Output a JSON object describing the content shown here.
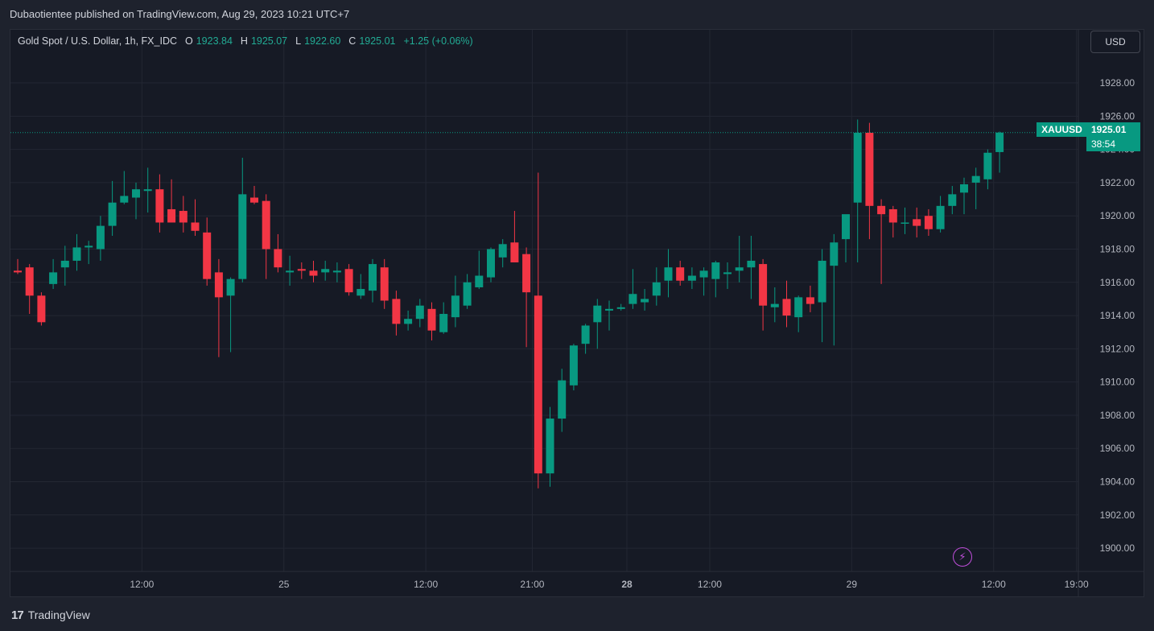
{
  "header": {
    "published_text": "Dubaotientee published on TradingView.com, Aug 29, 2023 10:21 UTC+7"
  },
  "legend": {
    "symbol": "Gold Spot / U.S. Dollar, 1h, FX_IDC",
    "o_label": "O",
    "o_value": "1923.84",
    "h_label": "H",
    "h_value": "1925.07",
    "l_label": "L",
    "l_value": "1922.60",
    "c_label": "C",
    "c_value": "1925.01",
    "change": "+1.25 (+0.06%)"
  },
  "currency_button": "USD",
  "last_price": {
    "ticker": "XAUUSD",
    "price": "1925.01",
    "countdown": "38:54"
  },
  "footer": {
    "logo": "17",
    "brand": "TradingView"
  },
  "colors": {
    "up": "#089981",
    "down": "#f23645",
    "grid": "#232733",
    "axis_text": "#b2b5be"
  },
  "icons": {
    "flash": "lightning-icon"
  },
  "chart_data": {
    "type": "candlestick",
    "title": "Gold Spot / U.S. Dollar, 1h, FX_IDC",
    "ylim": [
      1898.6,
      1931.2
    ],
    "y_ticks": [
      "1900.00",
      "1902.00",
      "1904.00",
      "1906.00",
      "1908.00",
      "1910.00",
      "1912.00",
      "1914.00",
      "1916.00",
      "1918.00",
      "1920.00",
      "1922.00",
      "1924.00",
      "1926.00",
      "1928.00"
    ],
    "x_ticks": [
      {
        "label": "12:00",
        "bar": 10.5,
        "bold": false
      },
      {
        "label": "25",
        "bar": 22.5,
        "bold": false
      },
      {
        "label": "12:00",
        "bar": 34.5,
        "bold": false
      },
      {
        "label": "21:00",
        "bar": 43.5,
        "bold": false
      },
      {
        "label": "28",
        "bar": 51.5,
        "bold": true
      },
      {
        "label": "12:00",
        "bar": 58.5,
        "bold": false
      },
      {
        "label": "29",
        "bar": 70.5,
        "bold": false
      },
      {
        "label": "12:00",
        "bar": 82.5,
        "bold": false
      },
      {
        "label": "19:00",
        "bar": 89.5,
        "bold": false
      }
    ],
    "candles": [
      [
        1916.7,
        1917.4,
        1916.5,
        1916.6
      ],
      [
        1916.9,
        1917.1,
        1914.1,
        1915.2
      ],
      [
        1915.2,
        1915.4,
        1913.4,
        1913.6
      ],
      [
        1915.9,
        1917.4,
        1915.6,
        1916.6
      ],
      [
        1916.9,
        1918.2,
        1915.8,
        1917.3
      ],
      [
        1917.3,
        1918.9,
        1916.7,
        1918.1
      ],
      [
        1918.1,
        1918.5,
        1917.1,
        1918.2
      ],
      [
        1918.0,
        1920.0,
        1917.3,
        1919.4
      ],
      [
        1919.4,
        1922.1,
        1918.8,
        1920.8
      ],
      [
        1920.8,
        1922.7,
        1920.7,
        1921.2
      ],
      [
        1921.1,
        1922.0,
        1919.8,
        1921.6
      ],
      [
        1921.5,
        1922.9,
        1920.2,
        1921.6
      ],
      [
        1921.6,
        1922.5,
        1919.0,
        1919.6
      ],
      [
        1920.4,
        1922.2,
        1919.8,
        1919.6
      ],
      [
        1920.3,
        1921.2,
        1919.0,
        1919.6
      ],
      [
        1919.6,
        1921.0,
        1918.8,
        1919.1
      ],
      [
        1919.0,
        1919.9,
        1915.8,
        1916.2
      ],
      [
        1916.6,
        1917.4,
        1911.5,
        1915.1
      ],
      [
        1915.2,
        1916.3,
        1911.8,
        1916.2
      ],
      [
        1916.2,
        1923.5,
        1916.0,
        1921.3
      ],
      [
        1921.1,
        1921.8,
        1920.7,
        1920.8
      ],
      [
        1920.9,
        1921.3,
        1916.2,
        1918.0
      ],
      [
        1918.0,
        1918.9,
        1916.6,
        1916.9
      ],
      [
        1916.6,
        1917.6,
        1915.8,
        1916.7
      ],
      [
        1916.8,
        1917.2,
        1916.2,
        1916.7
      ],
      [
        1916.7,
        1917.3,
        1916.0,
        1916.4
      ],
      [
        1916.6,
        1917.3,
        1916.1,
        1916.8
      ],
      [
        1916.6,
        1917.2,
        1916.0,
        1916.7
      ],
      [
        1916.8,
        1917.1,
        1915.2,
        1915.4
      ],
      [
        1915.2,
        1916.5,
        1915.0,
        1915.6
      ],
      [
        1915.5,
        1917.4,
        1914.8,
        1917.1
      ],
      [
        1916.9,
        1917.4,
        1914.4,
        1914.9
      ],
      [
        1915.0,
        1915.5,
        1912.8,
        1913.5
      ],
      [
        1913.5,
        1914.3,
        1913.1,
        1913.8
      ],
      [
        1913.8,
        1915.0,
        1913.3,
        1914.6
      ],
      [
        1914.4,
        1914.8,
        1912.5,
        1913.1
      ],
      [
        1913.0,
        1914.8,
        1912.9,
        1914.1
      ],
      [
        1913.9,
        1916.4,
        1913.3,
        1915.2
      ],
      [
        1914.6,
        1916.5,
        1914.4,
        1916.0
      ],
      [
        1915.7,
        1917.9,
        1915.6,
        1916.4
      ],
      [
        1916.3,
        1918.1,
        1916.0,
        1918.0
      ],
      [
        1917.5,
        1918.6,
        1916.9,
        1918.3
      ],
      [
        1918.4,
        1920.3,
        1917.2,
        1917.2
      ],
      [
        1917.7,
        1918.1,
        1912.1,
        1915.4
      ],
      [
        1915.2,
        1922.6,
        1903.6,
        1904.5
      ],
      [
        1904.5,
        1908.5,
        1903.7,
        1907.8
      ],
      [
        1907.8,
        1910.8,
        1907.0,
        1910.1
      ],
      [
        1909.8,
        1912.3,
        1909.5,
        1912.2
      ],
      [
        1912.3,
        1913.5,
        1911.7,
        1913.4
      ],
      [
        1913.6,
        1915.0,
        1912.0,
        1914.6
      ],
      [
        1914.3,
        1914.9,
        1913.1,
        1914.4
      ],
      [
        1914.4,
        1914.7,
        1914.3,
        1914.5
      ],
      [
        1914.7,
        1916.8,
        1914.4,
        1915.3
      ],
      [
        1914.8,
        1915.6,
        1914.3,
        1915.0
      ],
      [
        1915.2,
        1916.9,
        1914.6,
        1916.0
      ],
      [
        1916.1,
        1918.0,
        1915.1,
        1916.9
      ],
      [
        1916.9,
        1917.3,
        1915.8,
        1916.1
      ],
      [
        1916.1,
        1916.9,
        1915.6,
        1916.4
      ],
      [
        1916.3,
        1916.9,
        1915.2,
        1916.7
      ],
      [
        1916.2,
        1917.3,
        1915.1,
        1917.2
      ],
      [
        1916.5,
        1917.2,
        1915.6,
        1916.6
      ],
      [
        1916.7,
        1918.8,
        1916.0,
        1916.9
      ],
      [
        1916.9,
        1918.8,
        1915.0,
        1917.3
      ],
      [
        1917.1,
        1917.4,
        1913.1,
        1914.6
      ],
      [
        1914.5,
        1915.7,
        1913.6,
        1914.7
      ],
      [
        1915.0,
        1916.1,
        1913.3,
        1914.0
      ],
      [
        1913.9,
        1915.2,
        1913.0,
        1915.1
      ],
      [
        1915.1,
        1915.8,
        1914.2,
        1914.7
      ],
      [
        1914.8,
        1918.0,
        1912.4,
        1917.3
      ],
      [
        1917.0,
        1918.9,
        1912.2,
        1918.4
      ],
      [
        1918.6,
        1920.0,
        1917.2,
        1920.1
      ],
      [
        1920.8,
        1925.8,
        1917.2,
        1925.0
      ],
      [
        1925.0,
        1925.6,
        1918.6,
        1920.6
      ],
      [
        1920.6,
        1921.0,
        1915.9,
        1920.1
      ],
      [
        1920.4,
        1920.6,
        1918.7,
        1919.6
      ],
      [
        1919.6,
        1920.5,
        1918.9,
        1919.6
      ],
      [
        1919.8,
        1920.5,
        1918.7,
        1919.4
      ],
      [
        1920.0,
        1920.4,
        1918.8,
        1919.2
      ],
      [
        1919.2,
        1921.2,
        1919.0,
        1920.6
      ],
      [
        1920.6,
        1921.8,
        1920.1,
        1921.3
      ],
      [
        1921.4,
        1922.3,
        1920.1,
        1921.9
      ],
      [
        1922.0,
        1922.9,
        1920.4,
        1922.4
      ],
      [
        1922.2,
        1924.0,
        1921.6,
        1923.8
      ],
      [
        1923.84,
        1925.07,
        1922.6,
        1925.01
      ]
    ]
  }
}
